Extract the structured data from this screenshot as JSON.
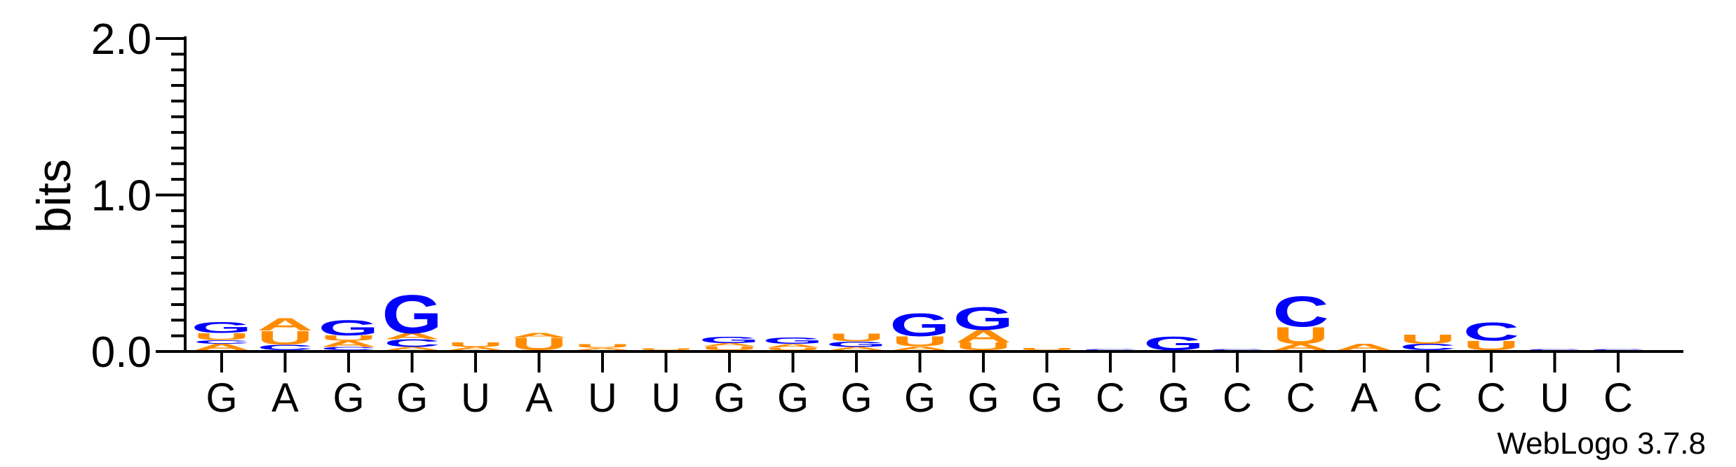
{
  "chart_data": {
    "type": "sequence-logo",
    "ylabel": "bits",
    "ylim": [
      0,
      2.0
    ],
    "yticks": [
      {
        "value": 0.0,
        "label": "0.0"
      },
      {
        "value": 1.0,
        "label": "1.0"
      },
      {
        "value": 2.0,
        "label": "2.0"
      }
    ],
    "x_tick_labels": [
      "G",
      "A",
      "G",
      "G",
      "U",
      "A",
      "U",
      "U",
      "G",
      "G",
      "G",
      "G",
      "G",
      "G",
      "C",
      "G",
      "C",
      "C",
      "A",
      "C",
      "C",
      "U",
      "C"
    ],
    "colors": {
      "A": "#ff8c00",
      "U": "#ff8c00",
      "G": "#0000ff",
      "C": "#0000ff"
    },
    "positions": [
      {
        "pos": 1,
        "stack": [
          {
            "base": "A",
            "bits": 0.04
          },
          {
            "base": "C",
            "bits": 0.025
          },
          {
            "base": "U",
            "bits": 0.045
          },
          {
            "base": "G",
            "bits": 0.07
          }
        ]
      },
      {
        "pos": 2,
        "stack": [
          {
            "base": "C",
            "bits": 0.035
          },
          {
            "base": "U",
            "bits": 0.09
          },
          {
            "base": "A",
            "bits": 0.08
          }
        ]
      },
      {
        "pos": 3,
        "stack": [
          {
            "base": "C",
            "bits": 0.02
          },
          {
            "base": "A",
            "bits": 0.04
          },
          {
            "base": "U",
            "bits": 0.035
          },
          {
            "base": "G",
            "bits": 0.1
          }
        ]
      },
      {
        "pos": 4,
        "stack": [
          {
            "base": "A",
            "bits": 0.02
          },
          {
            "base": "C",
            "bits": 0.05
          },
          {
            "base": "A",
            "bits": 0.04
          },
          {
            "base": "G",
            "bits": 0.25
          }
        ]
      },
      {
        "pos": 5,
        "stack": [
          {
            "base": "A",
            "bits": 0.02
          },
          {
            "base": "U",
            "bits": 0.03
          }
        ]
      },
      {
        "pos": 6,
        "stack": [
          {
            "base": "U",
            "bits": 0.08
          },
          {
            "base": "A",
            "bits": 0.03
          }
        ]
      },
      {
        "pos": 7,
        "stack": [
          {
            "base": "A",
            "bits": 0.015
          },
          {
            "base": "U",
            "bits": 0.025
          }
        ]
      },
      {
        "pos": 8,
        "stack": [
          {
            "base": "U",
            "bits": 0.012
          }
        ]
      },
      {
        "pos": 9,
        "stack": [
          {
            "base": "U",
            "bits": 0.025
          },
          {
            "base": "A",
            "bits": 0.02
          },
          {
            "base": "G",
            "bits": 0.04
          }
        ]
      },
      {
        "pos": 10,
        "stack": [
          {
            "base": "U",
            "bits": 0.015
          },
          {
            "base": "A",
            "bits": 0.025
          },
          {
            "base": "G",
            "bits": 0.04
          }
        ]
      },
      {
        "pos": 11,
        "stack": [
          {
            "base": "A",
            "bits": 0.02
          },
          {
            "base": "G",
            "bits": 0.035
          },
          {
            "base": "U",
            "bits": 0.05
          }
        ]
      },
      {
        "pos": 12,
        "stack": [
          {
            "base": "A",
            "bits": 0.025
          },
          {
            "base": "U",
            "bits": 0.065
          },
          {
            "base": "G",
            "bits": 0.15
          }
        ]
      },
      {
        "pos": 13,
        "stack": [
          {
            "base": "U",
            "bits": 0.05
          },
          {
            "base": "A",
            "bits": 0.08
          },
          {
            "base": "G",
            "bits": 0.15
          }
        ]
      },
      {
        "pos": 14,
        "stack": [
          {
            "base": "U",
            "bits": 0.015
          }
        ]
      },
      {
        "pos": 15,
        "stack": [
          {
            "base": "C",
            "bits": 0.005
          }
        ]
      },
      {
        "pos": 16,
        "stack": [
          {
            "base": "G",
            "bits": 0.09
          }
        ]
      },
      {
        "pos": 17,
        "stack": [
          {
            "base": "C",
            "bits": 0.005
          }
        ]
      },
      {
        "pos": 18,
        "stack": [
          {
            "base": "A",
            "bits": 0.04
          },
          {
            "base": "U",
            "bits": 0.11
          },
          {
            "base": "C",
            "bits": 0.2
          }
        ]
      },
      {
        "pos": 19,
        "stack": [
          {
            "base": "A",
            "bits": 0.04
          }
        ]
      },
      {
        "pos": 20,
        "stack": [
          {
            "base": "C",
            "bits": 0.04
          },
          {
            "base": "U",
            "bits": 0.06
          }
        ]
      },
      {
        "pos": 21,
        "stack": [
          {
            "base": "U",
            "bits": 0.06
          },
          {
            "base": "C",
            "bits": 0.12
          }
        ]
      },
      {
        "pos": 22,
        "stack": [
          {
            "base": "C",
            "bits": 0.005
          }
        ]
      },
      {
        "pos": 23,
        "stack": [
          {
            "base": "C",
            "bits": 0.005
          }
        ]
      }
    ]
  },
  "watermark": "WebLogo 3.7.8"
}
